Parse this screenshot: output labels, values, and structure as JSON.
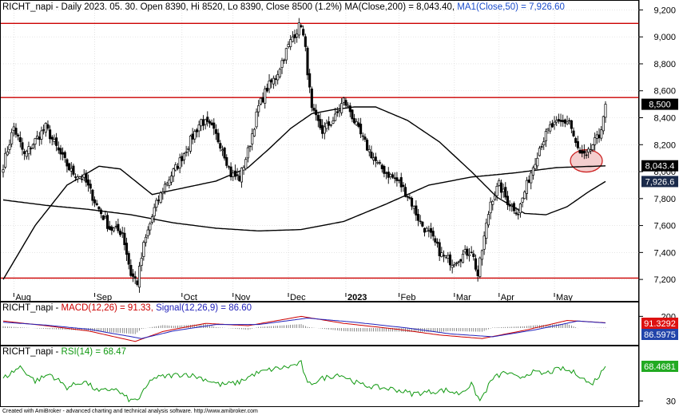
{
  "main_header": {
    "symbol": "RICHT_napi",
    "text": " - Daily 2023. 05. 30. Open 8390, Hi 8520, Lo 8390, Close 8500 (1.2%) ",
    "ma200": "MA(Close,200) = 8,043.40,",
    "ma50": "MA1(Close,50) = 7,926.60"
  },
  "macd_header": {
    "symbol": "RICHT_napi",
    "sep": " - ",
    "macd": "MACD(12,26) = 91.33,",
    "signal": "Signal(12,26,9) = 86.60"
  },
  "rsi_header": {
    "symbol": "RICHT_napi",
    "sep": " - ",
    "rsi": "RSI(14) = 68.47"
  },
  "footer": "Created with AmiBroker - advanced charting and technical analysis software. http://www.amibroker.com",
  "price_badges": {
    "close": "8,500",
    "ma200": "8,043.4",
    "ma50": "7,926.6"
  },
  "macd_badges": {
    "macd": "91.3292",
    "signal": "86.5975"
  },
  "rsi_badge": "68.4681",
  "colors": {
    "candle": "#000000",
    "ma_line": "#000000",
    "resistance": "#cc0000",
    "highlight_fill": "#f2c5c5",
    "highlight_stroke": "#cc2222",
    "macd_line": "#cc0000",
    "signal_line": "#2222bb",
    "rsi_line": "#119911",
    "badge_black": "#000000",
    "badge_navy": "#1a2a4a",
    "badge_blue": "#2244aa",
    "badge_green": "#22aa22",
    "badge_red": "#dd1111"
  },
  "chart_data": {
    "type": "candlestick",
    "y_axis": {
      "ticks": [
        "7,200",
        "7,400",
        "7,600",
        "7,800",
        "8,000",
        "8,200",
        "8,400",
        "8,600",
        "8,800",
        "9,000",
        "9,200"
      ],
      "range": [
        7100,
        9250
      ]
    },
    "x_axis": {
      "ticks": [
        {
          "label": "Aug",
          "bold": false
        },
        {
          "label": "Sep",
          "bold": false
        },
        {
          "label": "Oct",
          "bold": false
        },
        {
          "label": "Nov",
          "bold": false
        },
        {
          "label": "Dec",
          "bold": false
        },
        {
          "label": "2023",
          "bold": true
        },
        {
          "label": "Feb",
          "bold": false
        },
        {
          "label": "Mar",
          "bold": false
        },
        {
          "label": "Apr",
          "bold": false
        },
        {
          "label": "May",
          "bold": false
        }
      ]
    },
    "horizontal_lines": [
      9100,
      8550,
      7210
    ],
    "highlight": {
      "shape": "ellipse",
      "center_price": 8080,
      "period": "mid May 2023"
    },
    "price_anchors": [
      [
        0,
        8050
      ],
      [
        5,
        8330
      ],
      [
        10,
        8120
      ],
      [
        15,
        8230
      ],
      [
        20,
        8330
      ],
      [
        26,
        8150
      ],
      [
        32,
        8000
      ],
      [
        38,
        7950
      ],
      [
        44,
        7750
      ],
      [
        50,
        7580
      ],
      [
        56,
        7550
      ],
      [
        60,
        7240
      ],
      [
        63,
        7180
      ],
      [
        66,
        7450
      ],
      [
        71,
        7720
      ],
      [
        76,
        7900
      ],
      [
        82,
        8050
      ],
      [
        88,
        8230
      ],
      [
        93,
        8380
      ],
      [
        98,
        8320
      ],
      [
        103,
        8180
      ],
      [
        107,
        7980
      ],
      [
        111,
        7950
      ],
      [
        115,
        8150
      ],
      [
        120,
        8480
      ],
      [
        124,
        8620
      ],
      [
        128,
        8700
      ],
      [
        132,
        8860
      ],
      [
        136,
        9000
      ],
      [
        140,
        9100
      ],
      [
        142,
        8900
      ],
      [
        145,
        8450
      ],
      [
        150,
        8300
      ],
      [
        156,
        8400
      ],
      [
        160,
        8530
      ],
      [
        163,
        8450
      ],
      [
        167,
        8300
      ],
      [
        171,
        8180
      ],
      [
        176,
        8050
      ],
      [
        181,
        7980
      ],
      [
        186,
        7920
      ],
      [
        191,
        7800
      ],
      [
        196,
        7620
      ],
      [
        201,
        7520
      ],
      [
        206,
        7380
      ],
      [
        211,
        7330
      ],
      [
        216,
        7380
      ],
      [
        220,
        7420
      ],
      [
        223,
        7230
      ],
      [
        225,
        7420
      ],
      [
        229,
        7780
      ],
      [
        233,
        7900
      ],
      [
        237,
        7780
      ],
      [
        242,
        7700
      ],
      [
        247,
        7950
      ],
      [
        252,
        8180
      ],
      [
        257,
        8330
      ],
      [
        262,
        8360
      ],
      [
        266,
        8380
      ],
      [
        269,
        8200
      ],
      [
        271,
        8130
      ],
      [
        274,
        8100
      ],
      [
        277,
        8200
      ],
      [
        280,
        8260
      ],
      [
        283,
        8500
      ]
    ],
    "ma200_anchors": [
      [
        0,
        7790
      ],
      [
        20,
        7750
      ],
      [
        40,
        7720
      ],
      [
        60,
        7680
      ],
      [
        80,
        7620
      ],
      [
        100,
        7580
      ],
      [
        120,
        7560
      ],
      [
        140,
        7570
      ],
      [
        160,
        7630
      ],
      [
        180,
        7760
      ],
      [
        200,
        7900
      ],
      [
        220,
        7960
      ],
      [
        240,
        7990
      ],
      [
        260,
        8030
      ],
      [
        283,
        8043
      ]
    ],
    "ma50_anchors": [
      [
        0,
        7200
      ],
      [
        15,
        7600
      ],
      [
        30,
        7900
      ],
      [
        45,
        8040
      ],
      [
        55,
        8020
      ],
      [
        70,
        7830
      ],
      [
        85,
        7880
      ],
      [
        100,
        7930
      ],
      [
        115,
        8030
      ],
      [
        125,
        8170
      ],
      [
        135,
        8320
      ],
      [
        145,
        8430
      ],
      [
        155,
        8460
      ],
      [
        165,
        8480
      ],
      [
        175,
        8480
      ],
      [
        190,
        8380
      ],
      [
        205,
        8220
      ],
      [
        220,
        8000
      ],
      [
        232,
        7810
      ],
      [
        245,
        7690
      ],
      [
        255,
        7680
      ],
      [
        265,
        7740
      ],
      [
        275,
        7850
      ],
      [
        283,
        7927
      ]
    ],
    "macd": {
      "anchors": [
        [
          0,
          120
        ],
        [
          20,
          40
        ],
        [
          40,
          -50
        ],
        [
          62,
          -230
        ],
        [
          75,
          -60
        ],
        [
          95,
          80
        ],
        [
          115,
          40
        ],
        [
          140,
          200
        ],
        [
          160,
          80
        ],
        [
          185,
          -20
        ],
        [
          205,
          -120
        ],
        [
          225,
          -180
        ],
        [
          245,
          -40
        ],
        [
          265,
          130
        ],
        [
          283,
          91
        ]
      ],
      "signal_anchors": [
        [
          0,
          100
        ],
        [
          20,
          50
        ],
        [
          40,
          -20
        ],
        [
          65,
          -180
        ],
        [
          80,
          -50
        ],
        [
          100,
          60
        ],
        [
          120,
          60
        ],
        [
          143,
          170
        ],
        [
          165,
          100
        ],
        [
          190,
          0
        ],
        [
          210,
          -100
        ],
        [
          230,
          -150
        ],
        [
          250,
          -30
        ],
        [
          270,
          120
        ],
        [
          283,
          87
        ]
      ]
    },
    "rsi": {
      "range": [
        25,
        80
      ],
      "tick": "30",
      "anchors": [
        [
          0,
          55
        ],
        [
          8,
          68
        ],
        [
          15,
          52
        ],
        [
          22,
          60
        ],
        [
          30,
          45
        ],
        [
          38,
          52
        ],
        [
          45,
          40
        ],
        [
          52,
          44
        ],
        [
          60,
          30
        ],
        [
          64,
          33
        ],
        [
          70,
          55
        ],
        [
          78,
          58
        ],
        [
          86,
          60
        ],
        [
          94,
          55
        ],
        [
          102,
          48
        ],
        [
          110,
          50
        ],
        [
          118,
          60
        ],
        [
          126,
          65
        ],
        [
          134,
          68
        ],
        [
          140,
          72
        ],
        [
          143,
          48
        ],
        [
          150,
          55
        ],
        [
          158,
          60
        ],
        [
          162,
          55
        ],
        [
          168,
          48
        ],
        [
          176,
          45
        ],
        [
          184,
          43
        ],
        [
          192,
          38
        ],
        [
          200,
          40
        ],
        [
          208,
          42
        ],
        [
          214,
          38
        ],
        [
          220,
          48
        ],
        [
          224,
          30
        ],
        [
          230,
          55
        ],
        [
          236,
          62
        ],
        [
          242,
          55
        ],
        [
          248,
          62
        ],
        [
          254,
          60
        ],
        [
          262,
          66
        ],
        [
          270,
          60
        ],
        [
          276,
          48
        ],
        [
          280,
          58
        ],
        [
          283,
          68.47
        ]
      ]
    }
  }
}
